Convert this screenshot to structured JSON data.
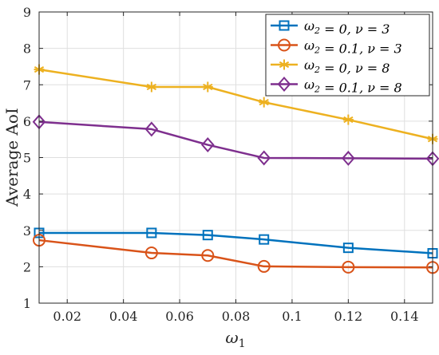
{
  "chart_data": {
    "type": "line",
    "x": [
      0.01,
      0.05,
      0.07,
      0.09,
      0.12,
      0.15
    ],
    "xlabel": "ω1",
    "ylabel": "Average AoI",
    "xlim": [
      0.01,
      0.15
    ],
    "ylim": [
      1,
      9
    ],
    "xticks": [
      0.02,
      0.04,
      0.06,
      0.08,
      0.1,
      0.12,
      0.14
    ],
    "xtick_labels": [
      "0.02",
      "0.04",
      "0.06",
      "0.08",
      "0.1",
      "0.12",
      "0.14"
    ],
    "yticks": [
      1,
      2,
      3,
      4,
      5,
      6,
      7,
      8,
      9
    ],
    "ytick_labels": [
      "1",
      "2",
      "3",
      "4",
      "5",
      "6",
      "7",
      "8",
      "9"
    ],
    "grid": true,
    "legend_position": "top-right",
    "series": [
      {
        "name": "ω2 = 0, ν = 3",
        "color": "#0072BD",
        "marker": "square",
        "values": [
          2.93,
          2.93,
          2.87,
          2.75,
          2.52,
          2.37
        ]
      },
      {
        "name": "ω2 = 0.1, ν = 3",
        "color": "#D95319",
        "marker": "circle",
        "values": [
          2.73,
          2.38,
          2.31,
          2.01,
          1.99,
          1.98
        ]
      },
      {
        "name": "ω2 = 0, ν = 8",
        "color": "#EDB120",
        "marker": "asterisk",
        "values": [
          7.42,
          6.94,
          6.94,
          6.52,
          6.04,
          5.51
        ]
      },
      {
        "name": "ω2 = 0.1, ν = 8",
        "color": "#7E2F8E",
        "marker": "diamond",
        "values": [
          5.98,
          5.78,
          5.35,
          4.99,
          4.98,
          4.97
        ]
      }
    ]
  }
}
